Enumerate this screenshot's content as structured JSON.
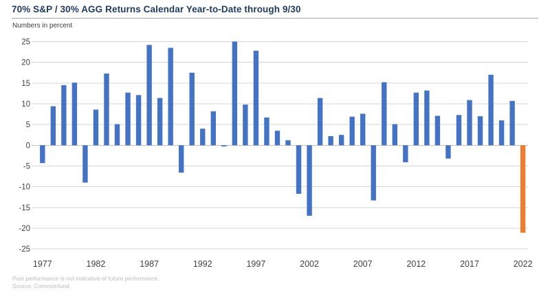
{
  "header": {
    "title": "70% S&P / 30% AGG Returns Calendar Year-to-Date through 9/30",
    "subtitle": "Numbers in percent"
  },
  "footer": {
    "line1": "Past performance is not indicative of future performance.",
    "line2": "Source: Commonfund"
  },
  "colors": {
    "bar_default": "#4472C4",
    "bar_highlight": "#ED7D31",
    "title_text": "#1E3A5F",
    "title_rule": "#A6A6A6",
    "grid_line": "#D4D4D4",
    "zero_line": "#C0C0C0",
    "axis_text": "#404040",
    "footer_text": "#BCBCBC"
  },
  "chart_data": {
    "type": "bar",
    "title": "70% S&P / 30% AGG Returns Calendar Year-to-Date through 9/30",
    "subtitle": "Numbers in percent",
    "categories": [
      1977,
      1978,
      1979,
      1980,
      1981,
      1982,
      1983,
      1984,
      1985,
      1986,
      1987,
      1988,
      1989,
      1990,
      1991,
      1992,
      1993,
      1994,
      1995,
      1996,
      1997,
      1998,
      1999,
      2000,
      2001,
      2002,
      2003,
      2004,
      2005,
      2006,
      2007,
      2008,
      2009,
      2010,
      2011,
      2012,
      2013,
      2014,
      2015,
      2016,
      2017,
      2018,
      2019,
      2020,
      2021,
      2022
    ],
    "values": [
      -4.3,
      9.4,
      14.5,
      15.1,
      -9.0,
      8.6,
      17.3,
      5.1,
      12.7,
      12.1,
      24.2,
      11.4,
      23.5,
      -6.6,
      17.5,
      4.0,
      8.2,
      -0.3,
      25.0,
      9.8,
      22.8,
      6.7,
      3.5,
      1.2,
      -11.7,
      -17.0,
      11.4,
      2.2,
      2.5,
      6.9,
      7.6,
      -13.3,
      15.2,
      5.1,
      -4.1,
      12.7,
      13.2,
      7.1,
      -3.2,
      7.3,
      10.9,
      7.0,
      17.0,
      6.0,
      10.7,
      -21.1
    ],
    "highlight_category": 2022,
    "xlabel": "",
    "ylabel": "",
    "ylim": [
      -25,
      25
    ],
    "y_tick_step": 5,
    "y_ticks": [
      25,
      20,
      15,
      10,
      5,
      0,
      -5,
      -10,
      -15,
      -20,
      -25
    ],
    "x_tick_labels": [
      "1977",
      "1982",
      "1987",
      "1992",
      "1997",
      "2002",
      "2007",
      "2012",
      "2017",
      "2022"
    ],
    "grid": true,
    "legend": false
  }
}
